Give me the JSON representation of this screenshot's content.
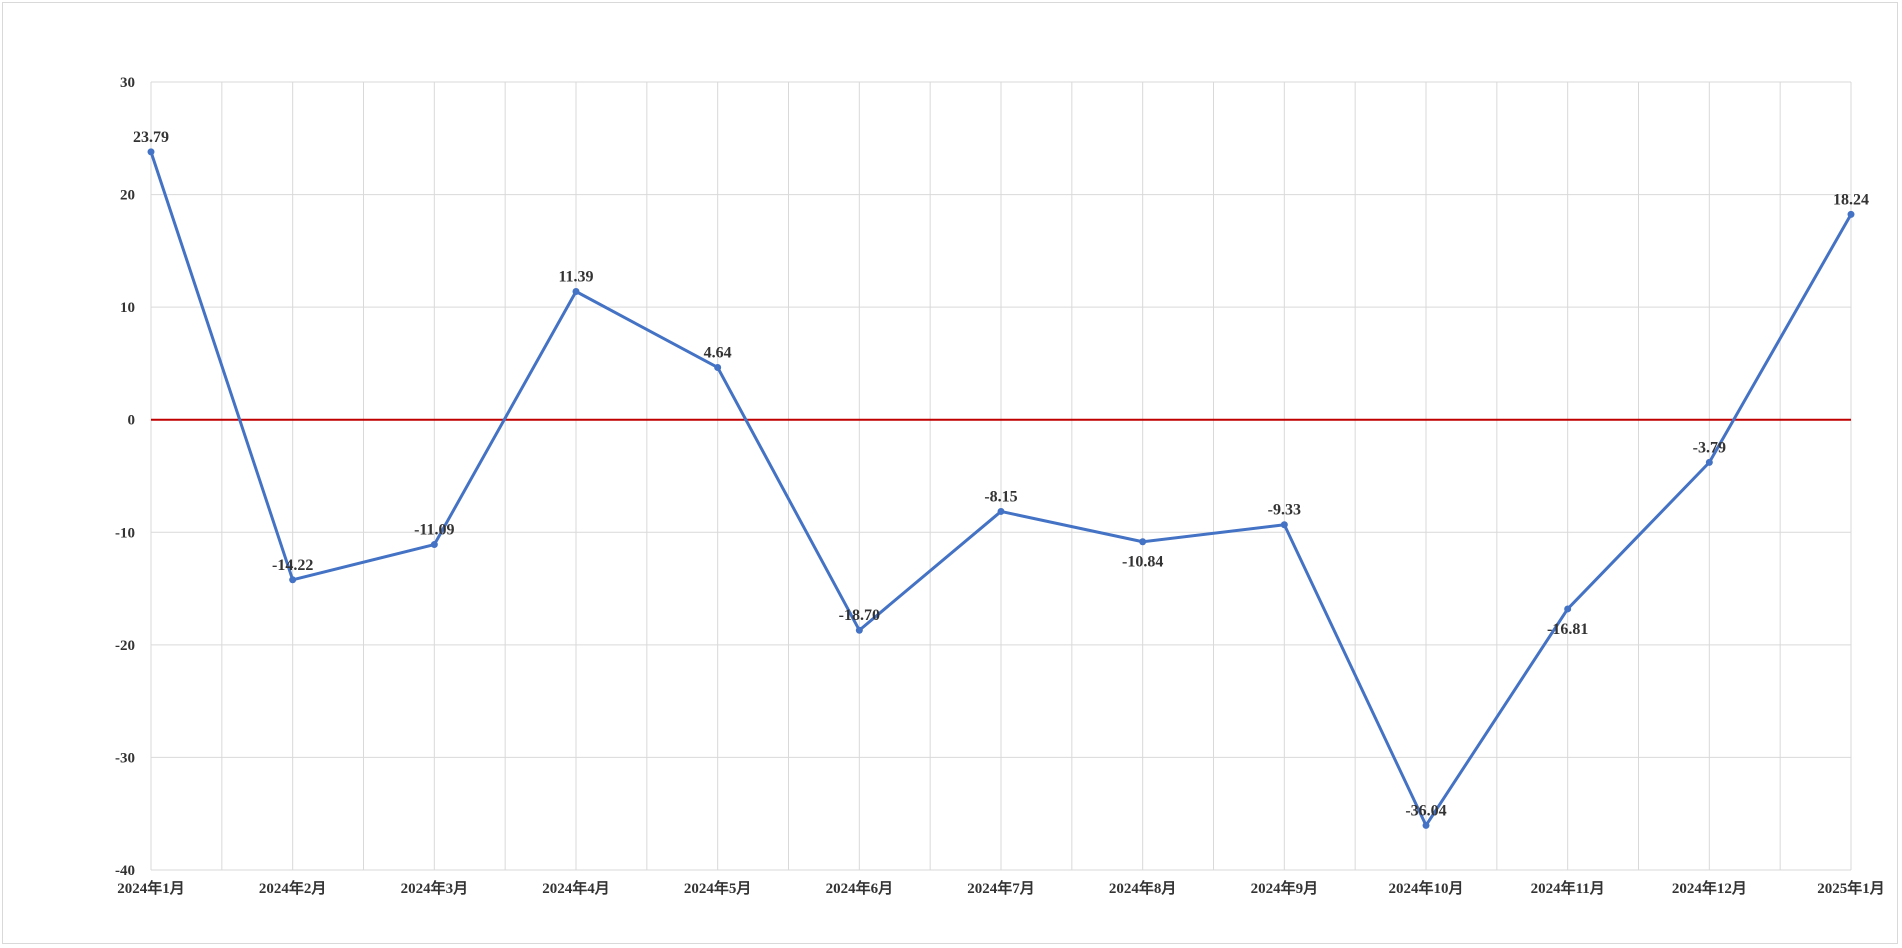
{
  "chart_data": {
    "type": "line",
    "title": "",
    "xlabel": "",
    "ylabel": "",
    "categories": [
      "2024年1月",
      "2024年2月",
      "2024年3月",
      "2024年4月",
      "2024年5月",
      "2024年6月",
      "2024年7月",
      "2024年8月",
      "2024年9月",
      "2024年10月",
      "2024年11月",
      "2024年12月",
      "2025年1月"
    ],
    "series": [
      {
        "values": [
          23.79,
          -14.22,
          -11.09,
          11.39,
          4.64,
          -18.7,
          -8.15,
          -10.84,
          -9.33,
          -36.04,
          -16.81,
          -3.79,
          18.24
        ],
        "labels": [
          "23.79",
          "-14.22",
          "-11.09",
          "11.39",
          "4.64",
          "-18.70",
          "-8.15",
          "-10.84",
          "-9.33",
          "-36.04",
          "-16.81",
          "-3.79",
          "18.24"
        ],
        "label_position": [
          "above",
          "above",
          "above",
          "above",
          "above",
          "above",
          "above",
          "below",
          "above",
          "above",
          "below",
          "above",
          "above"
        ],
        "color": "#4472C4"
      }
    ],
    "reference_line": {
      "y": 0,
      "color": "#C00000"
    },
    "ylim": [
      -40,
      30
    ],
    "yticks": [
      "30",
      "20",
      "10",
      "0",
      "-10",
      "-20",
      "-30",
      "-40"
    ],
    "grid": true,
    "legend": "none"
  }
}
